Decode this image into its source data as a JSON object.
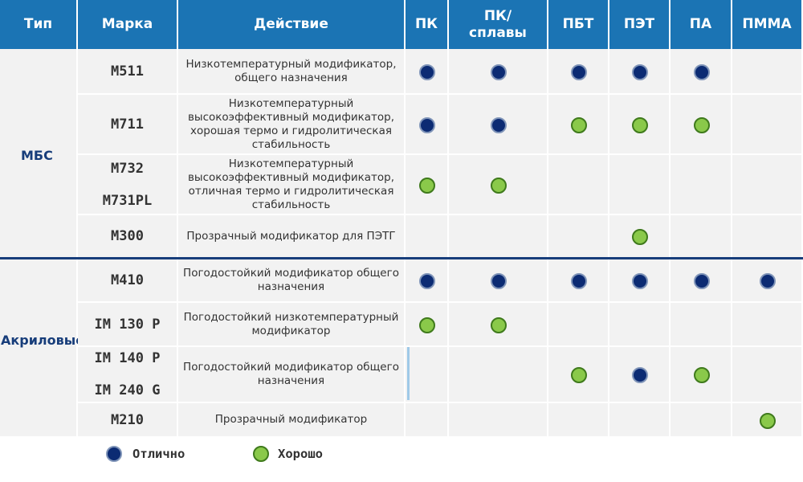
{
  "headers": [
    "Тип",
    "Марка",
    "Действие",
    "ПК",
    "ПК/\nсплавы",
    "ПБТ",
    "ПЭТ",
    "ПА",
    "ПММА"
  ],
  "types": {
    "mbs": "МБС",
    "acrylic": "Акриловые"
  },
  "rows": [
    {
      "marks": [
        "M511"
      ],
      "action": "Низкотемпературный модификатор, общего назначения",
      "ratings": [
        "excellent",
        "excellent",
        "excellent",
        "excellent",
        "excellent",
        ""
      ]
    },
    {
      "marks": [
        "M711"
      ],
      "action": "Низкотемпературный высокоэффективный модификатор, хорошая термо и гидролитическая стабильность",
      "ratings": [
        "excellent",
        "excellent",
        "good",
        "good",
        "good",
        ""
      ]
    },
    {
      "marks": [
        "M732",
        "M731PL"
      ],
      "action": "Низкотемпературный высокоэффективный модификатор, отличная термо и гидролитическая стабильность",
      "ratings": [
        "good",
        "good",
        "",
        "",
        "",
        ""
      ]
    },
    {
      "marks": [
        "M300"
      ],
      "action": "Прозрачный модификатор для ПЭТГ",
      "ratings": [
        "",
        "",
        "",
        "good",
        "",
        ""
      ]
    },
    {
      "marks": [
        "M410"
      ],
      "action": "Погодостойкий модификатор общего назначения",
      "ratings": [
        "excellent",
        "excellent",
        "excellent",
        "excellent",
        "excellent",
        "excellent"
      ]
    },
    {
      "marks": [
        "IM 130 P"
      ],
      "action": "Погодостойкий низкотемпературный модификатор",
      "ratings": [
        "good",
        "good",
        "",
        "",
        "",
        ""
      ]
    },
    {
      "marks": [
        "IM 140 P",
        "IM 240 G"
      ],
      "action": "Погодостойкий модификатор общего назначения",
      "ratings": [
        "",
        "",
        "good",
        "excellent",
        "good",
        ""
      ]
    },
    {
      "marks": [
        "M210"
      ],
      "action": "Прозрачный модификатор",
      "ratings": [
        "",
        "",
        "",
        "",
        "",
        "good"
      ]
    }
  ],
  "legend": {
    "excellent": "Отлично",
    "good": "Хорошо"
  },
  "colors": {
    "header": "#1b74b4",
    "excellent": "#0c2b73",
    "good": "#8ac94a",
    "cell": "#f2f2f2",
    "type_text": "#173d7a"
  }
}
